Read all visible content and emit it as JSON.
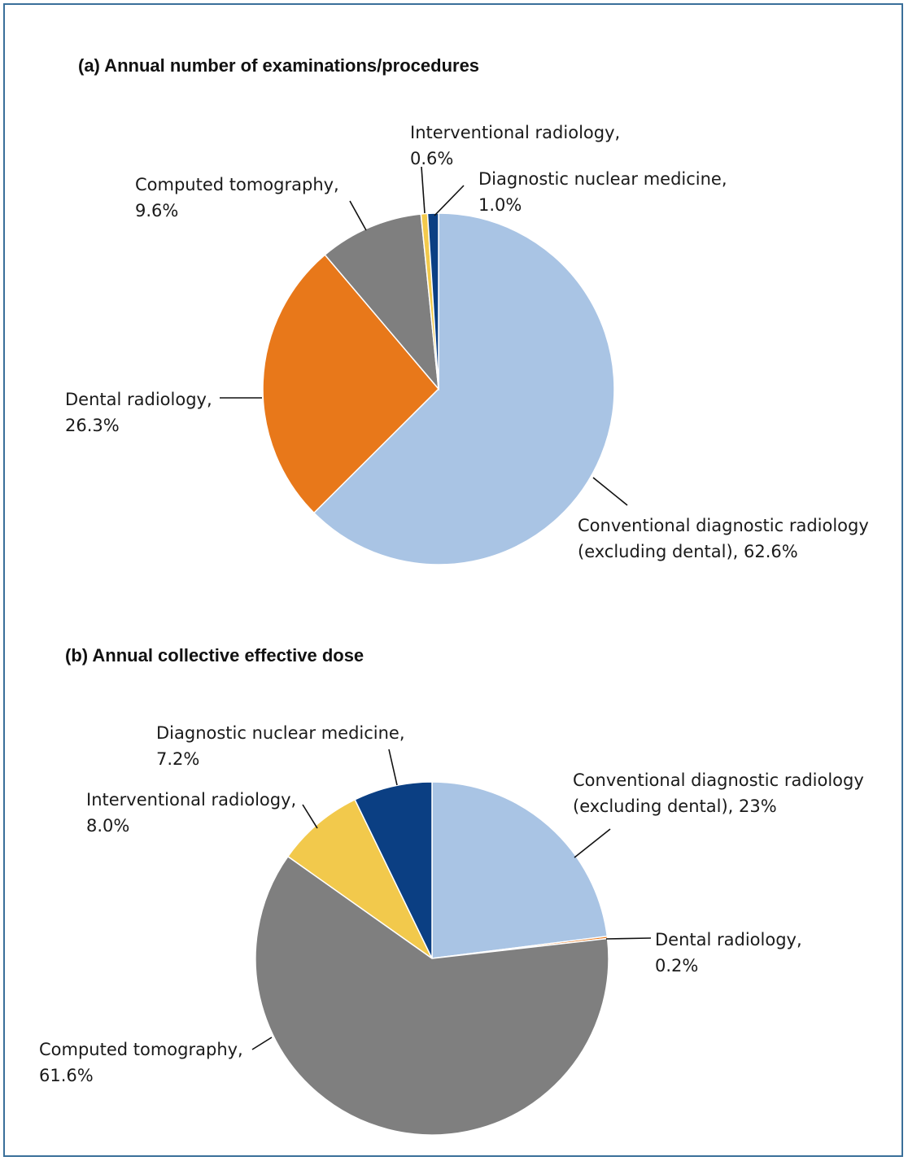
{
  "chart_data": [
    {
      "type": "pie",
      "title": "(a) Annual number of examinations/procedures",
      "slices": [
        {
          "label": [
            "Conventional diagnostic radiology",
            "(excluding dental), 62.6%"
          ],
          "value": 62.6,
          "color": "#a9c4e4"
        },
        {
          "label": [
            "Dental radiology,",
            "26.3%"
          ],
          "value": 26.3,
          "color": "#e8781a"
        },
        {
          "label": [
            "Computed tomography,",
            "9.6%"
          ],
          "value": 9.6,
          "color": "#7f7f7f"
        },
        {
          "label": [
            "Interventional radiology,",
            "0.6%"
          ],
          "value": 0.6,
          "color": "#f2c94c"
        },
        {
          "label": [
            "Diagnostic nuclear medicine,",
            "1.0%"
          ],
          "value": 1.0,
          "color": "#0b3f83"
        }
      ]
    },
    {
      "type": "pie",
      "title": "(b) Annual collective effective dose",
      "slices": [
        {
          "label": [
            "Conventional diagnostic radiology",
            "(excluding dental), 23%"
          ],
          "value": 23,
          "color": "#a9c4e4"
        },
        {
          "label": [
            "Dental radiology,",
            "0.2%"
          ],
          "value": 0.2,
          "color": "#e8781a"
        },
        {
          "label": [
            "Computed tomography,",
            "61.6%"
          ],
          "value": 61.6,
          "color": "#7f7f7f"
        },
        {
          "label": [
            "Interventional radiology,",
            "8.0%"
          ],
          "value": 8.0,
          "color": "#f2c94c"
        },
        {
          "label": [
            "Diagnostic nuclear medicine,",
            "7.2%"
          ],
          "value": 7.2,
          "color": "#0b3f83"
        }
      ]
    }
  ]
}
